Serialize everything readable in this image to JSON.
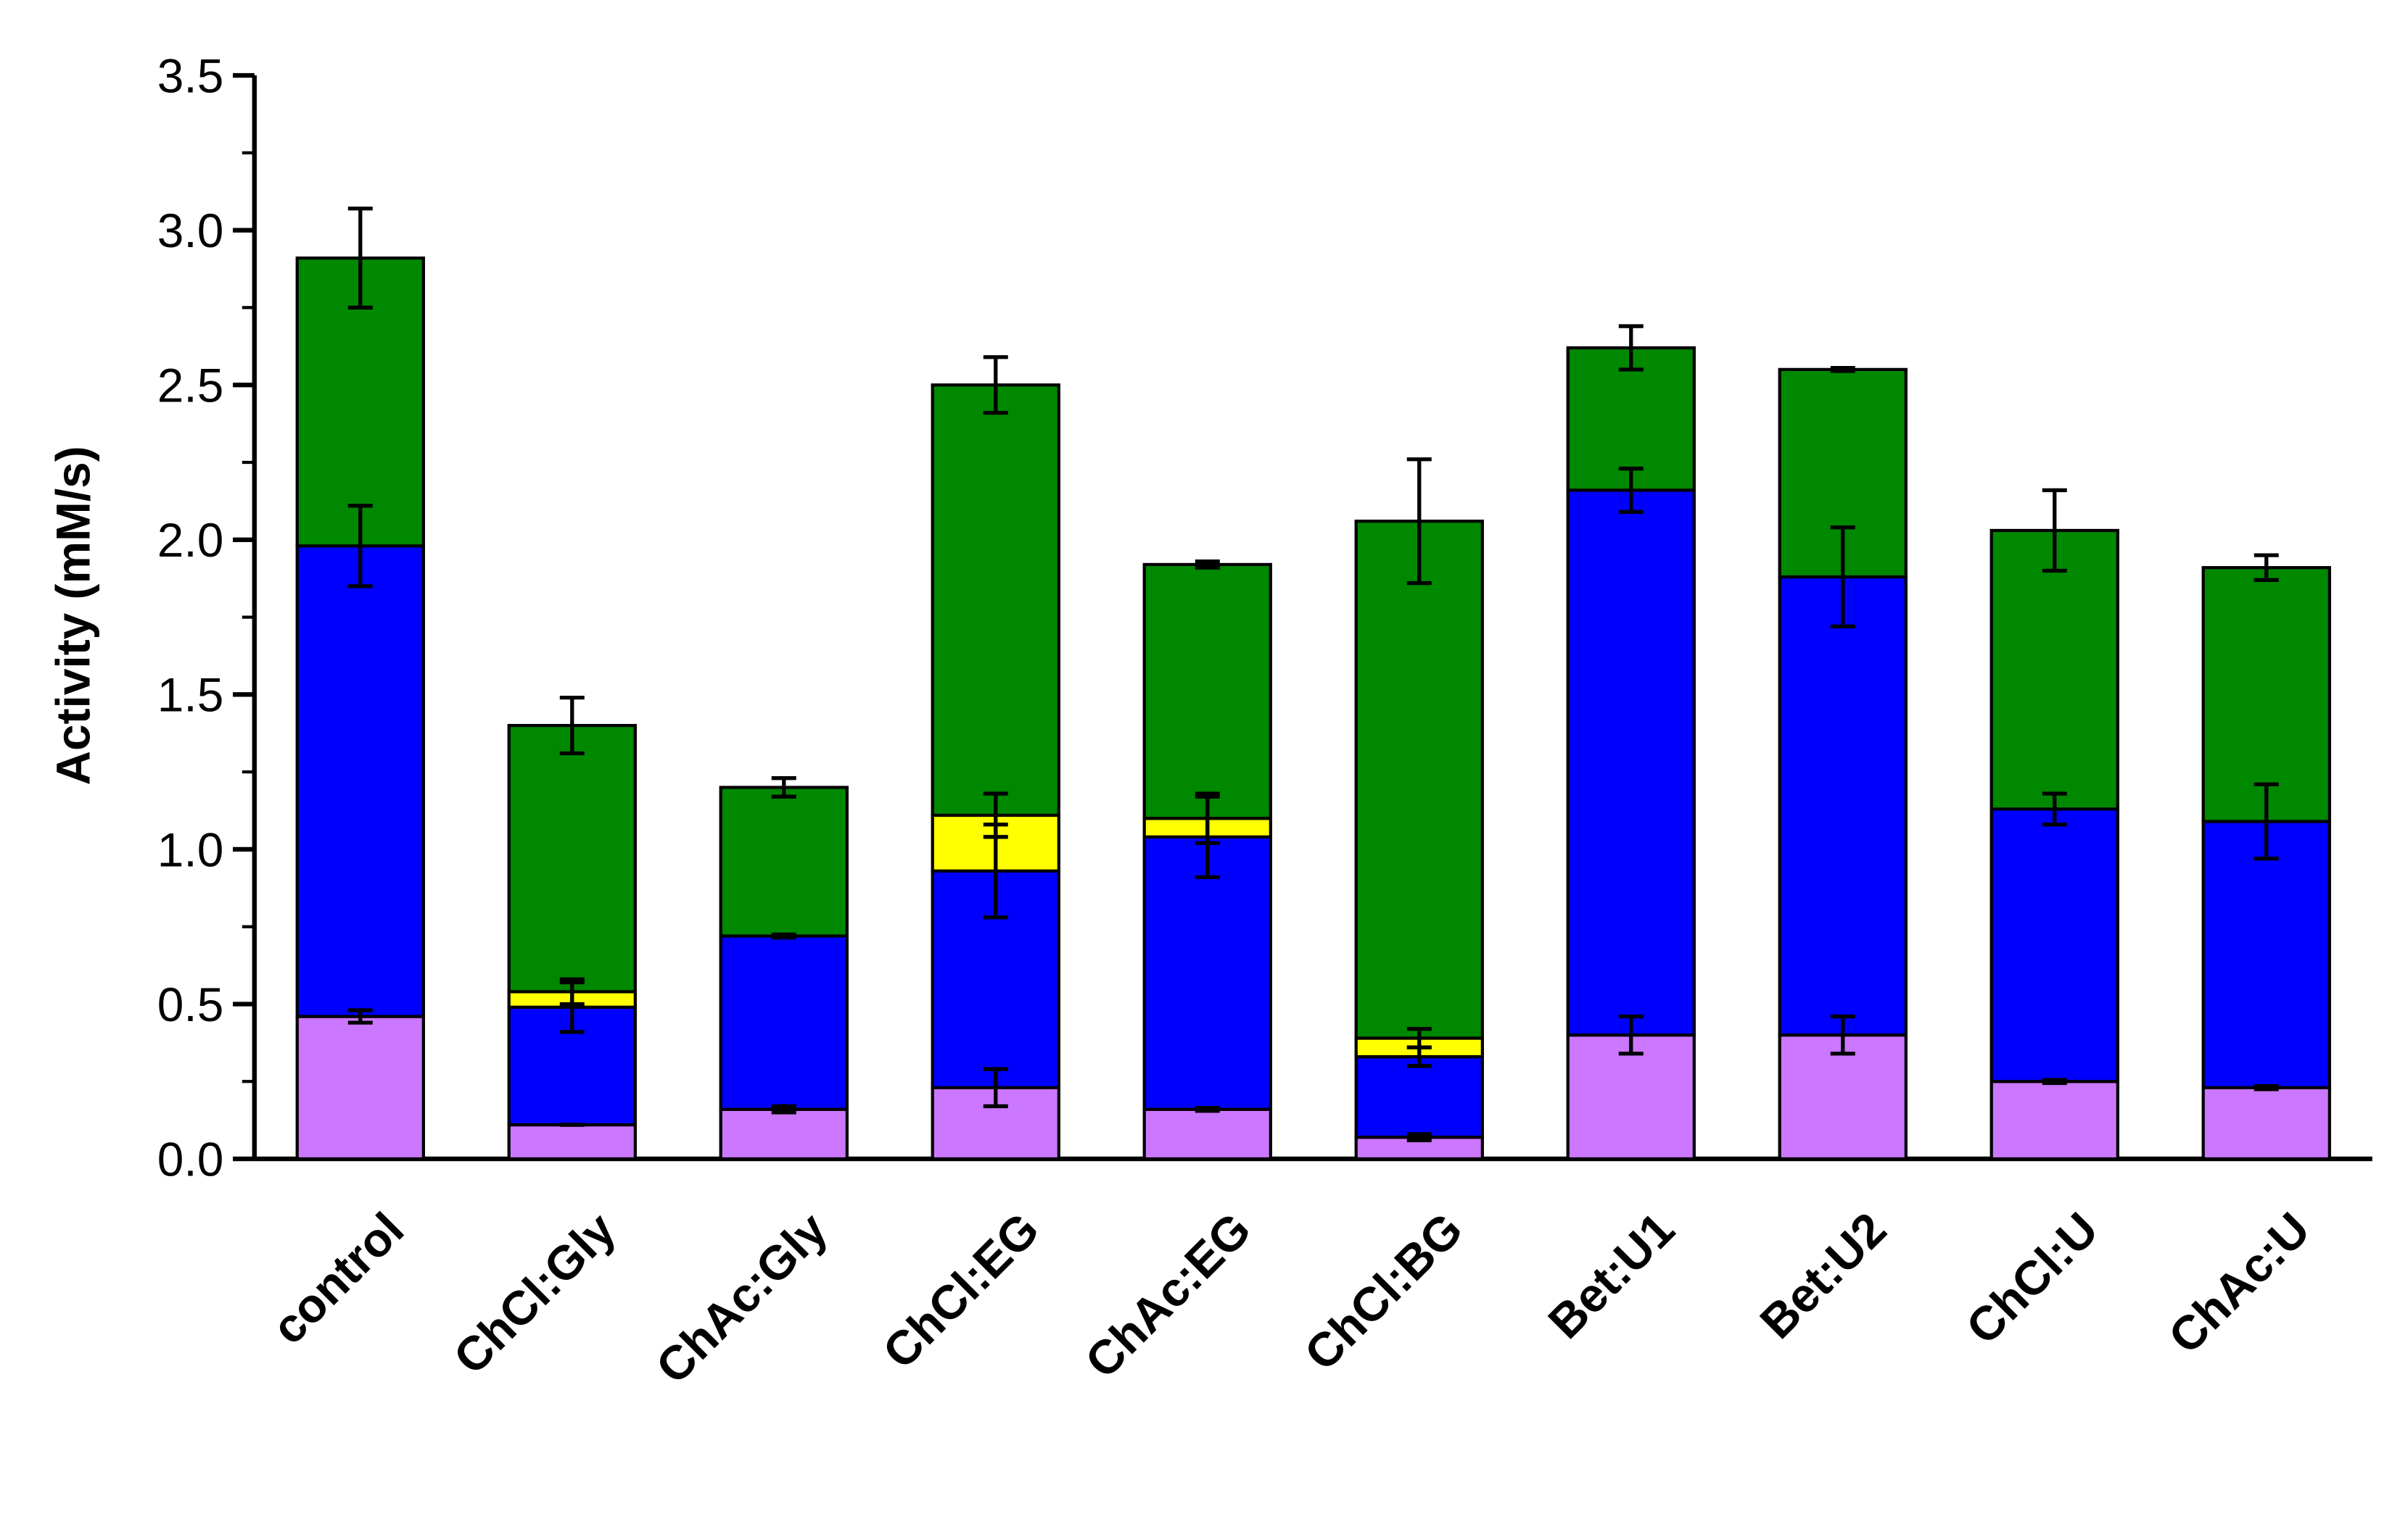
{
  "chart_data": {
    "type": "stacked_bar",
    "y_label": "Activity (mM/s)",
    "categories": [
      "control",
      "ChCl:Gly",
      "ChAc:Gly",
      "ChCl:EG",
      "ChAc:EG",
      "ChCl:BG",
      "Bet:U1",
      "Bet:U2",
      "ChCl:U",
      "ChAc:U"
    ],
    "series": [
      {
        "color": "#cc77ff",
        "values": [
          0.46,
          0.11,
          0.16,
          0.23,
          0.16,
          0.07,
          0.4,
          0.4,
          0.25,
          0.23
        ],
        "errors": [
          0.02,
          0.0,
          0.01,
          0.06,
          0.005,
          0.01,
          0.06,
          0.06,
          0.005,
          0.005
        ]
      },
      {
        "color": "#0000ff",
        "values": [
          1.52,
          0.38,
          0.56,
          0.7,
          0.88,
          0.26,
          1.76,
          1.48,
          0.88,
          0.86
        ],
        "errors": [
          0.13,
          0.08,
          0.005,
          0.15,
          0.13,
          0.03,
          0.07,
          0.16,
          0.05,
          0.12
        ]
      },
      {
        "color": "#ffff00",
        "values": [
          null,
          0.05,
          null,
          0.18,
          0.06,
          0.06,
          null,
          null,
          null,
          null
        ],
        "errors": [
          null,
          0.04,
          null,
          0.07,
          0.08,
          0.03,
          null,
          null,
          null,
          null
        ]
      },
      {
        "color": "#008800",
        "values": [
          0.93,
          0.86,
          0.48,
          1.39,
          0.82,
          1.67,
          0.46,
          0.67,
          0.9,
          0.82
        ],
        "errors": [
          0.16,
          0.09,
          0.03,
          0.09,
          0.01,
          0.2,
          0.07,
          0.005,
          0.13,
          0.04
        ]
      }
    ],
    "ylim": [
      0,
      3.5
    ],
    "yticks": [
      {
        "value": 0,
        "label": "0.0"
      },
      0.5,
      {
        "value": 1,
        "label": "1.0"
      },
      1.5,
      {
        "value": 2,
        "label": "2.0"
      },
      2.5,
      {
        "value": 3,
        "label": "3.0"
      },
      3.5
    ]
  }
}
